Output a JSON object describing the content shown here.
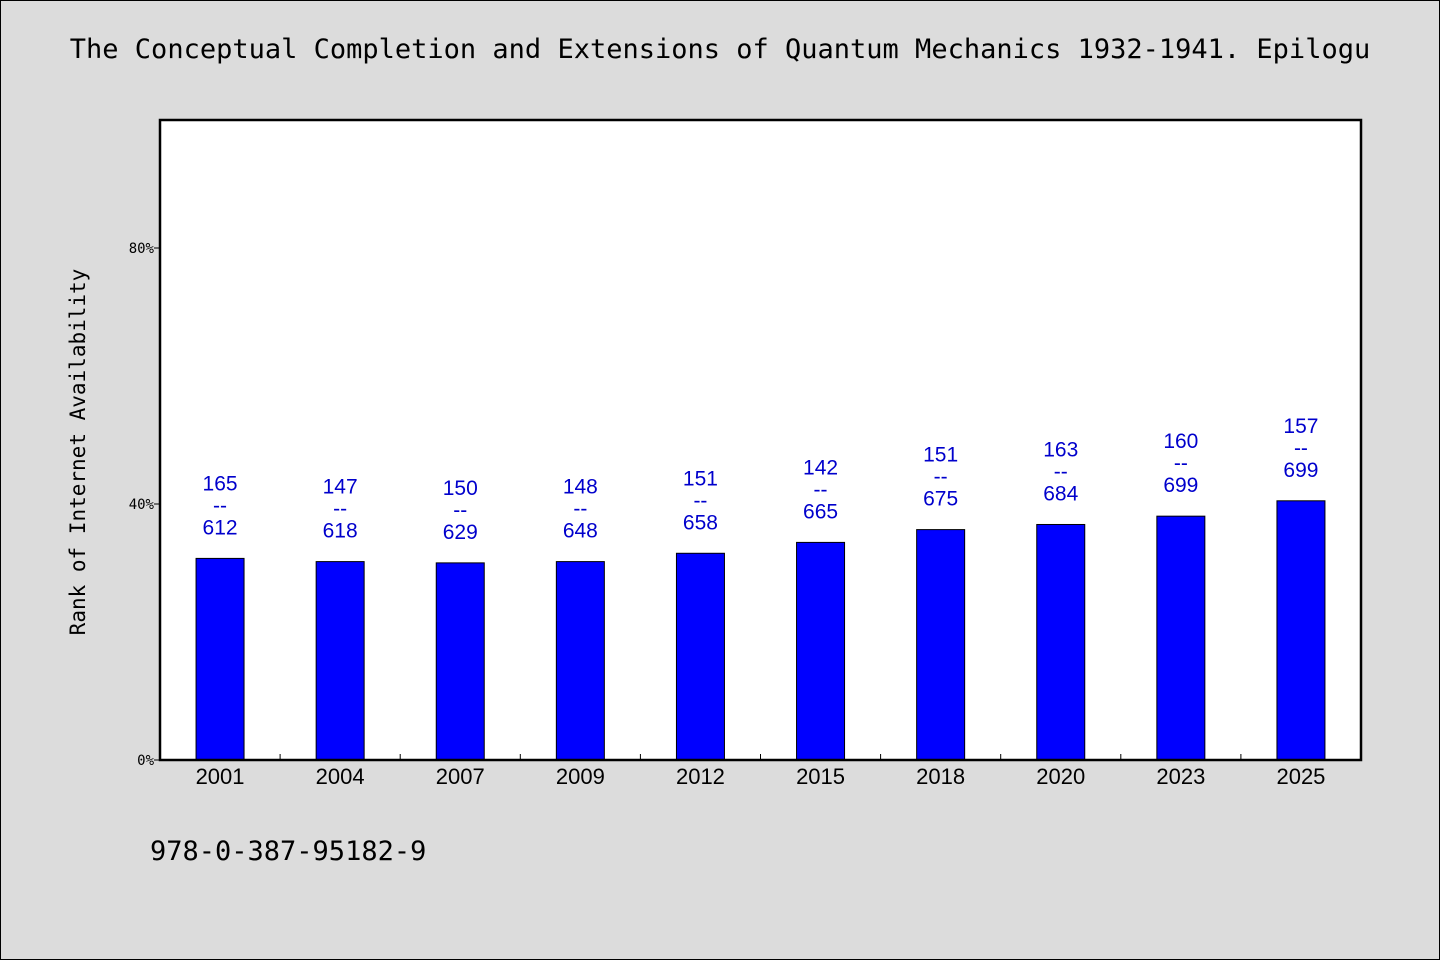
{
  "chart_data": {
    "type": "bar",
    "title": "The Conceptual Completion and Extensions of Quantum Mechanics 1932-1941. Epilogu",
    "ylabel": "Rank of Internet Availability",
    "xlabel": "",
    "categories": [
      "2001",
      "2004",
      "2007",
      "2009",
      "2012",
      "2015",
      "2018",
      "2020",
      "2023",
      "2025"
    ],
    "values": [
      31.5,
      31.0,
      30.8,
      31.0,
      32.3,
      34.0,
      36.0,
      36.8,
      38.1,
      40.5
    ],
    "data_labels": [
      {
        "top": "165",
        "sep": "--",
        "bottom": "612"
      },
      {
        "top": "147",
        "sep": "--",
        "bottom": "618"
      },
      {
        "top": "150",
        "sep": "--",
        "bottom": "629"
      },
      {
        "top": "148",
        "sep": "--",
        "bottom": "648"
      },
      {
        "top": "151",
        "sep": "--",
        "bottom": "658"
      },
      {
        "top": "142",
        "sep": "--",
        "bottom": "665"
      },
      {
        "top": "151",
        "sep": "--",
        "bottom": "675"
      },
      {
        "top": "163",
        "sep": "--",
        "bottom": "684"
      },
      {
        "top": "160",
        "sep": "--",
        "bottom": "699"
      },
      {
        "top": "157",
        "sep": "--",
        "bottom": "699"
      }
    ],
    "ylim": [
      0,
      100
    ],
    "yticks": [
      0,
      40,
      80
    ],
    "ytick_labels": [
      "0%",
      "40%",
      "80%"
    ],
    "grid": false,
    "colors": {
      "bar": "#0000ff",
      "data_label": "#0000cc",
      "plot_bg": "#ffffff",
      "page_bg": "#dcdcdc"
    }
  },
  "footer": {
    "code": "978-0-387-95182-9"
  }
}
